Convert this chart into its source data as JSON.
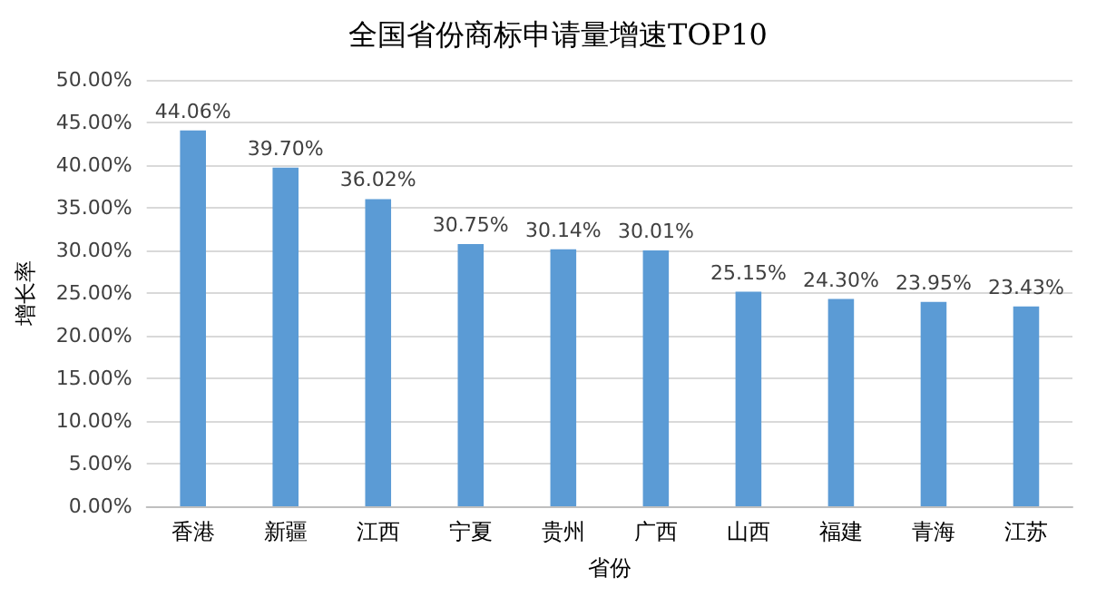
{
  "chart_data": {
    "type": "bar",
    "title": "全国省份商标申请量增速TOP10",
    "xlabel": "省份",
    "ylabel": "增长率",
    "categories": [
      "香港",
      "新疆",
      "江西",
      "宁夏",
      "贵州",
      "广西",
      "山西",
      "福建",
      "青海",
      "江苏"
    ],
    "values": [
      44.06,
      39.7,
      36.02,
      30.75,
      30.14,
      30.01,
      25.15,
      24.3,
      23.95,
      23.43
    ],
    "value_labels": [
      "44.06%",
      "39.70%",
      "36.02%",
      "30.75%",
      "30.14%",
      "30.01%",
      "25.15%",
      "24.30%",
      "23.95%",
      "23.43%"
    ],
    "color": "#5b9bd5",
    "ylim": [
      0,
      50
    ],
    "yticks": [
      {
        "value": 0,
        "label": "0.00%"
      },
      {
        "value": 5,
        "label": "5.00%"
      },
      {
        "value": 10,
        "label": "10.00%"
      },
      {
        "value": 15,
        "label": "15.00%"
      },
      {
        "value": 20,
        "label": "20.00%"
      },
      {
        "value": 25,
        "label": "25.00%"
      },
      {
        "value": 30,
        "label": "30.00%"
      },
      {
        "value": 35,
        "label": "35.00%"
      },
      {
        "value": 40,
        "label": "40.00%"
      },
      {
        "value": 45,
        "label": "45.00%"
      },
      {
        "value": 50,
        "label": "50.00%"
      }
    ],
    "grid": "y"
  }
}
